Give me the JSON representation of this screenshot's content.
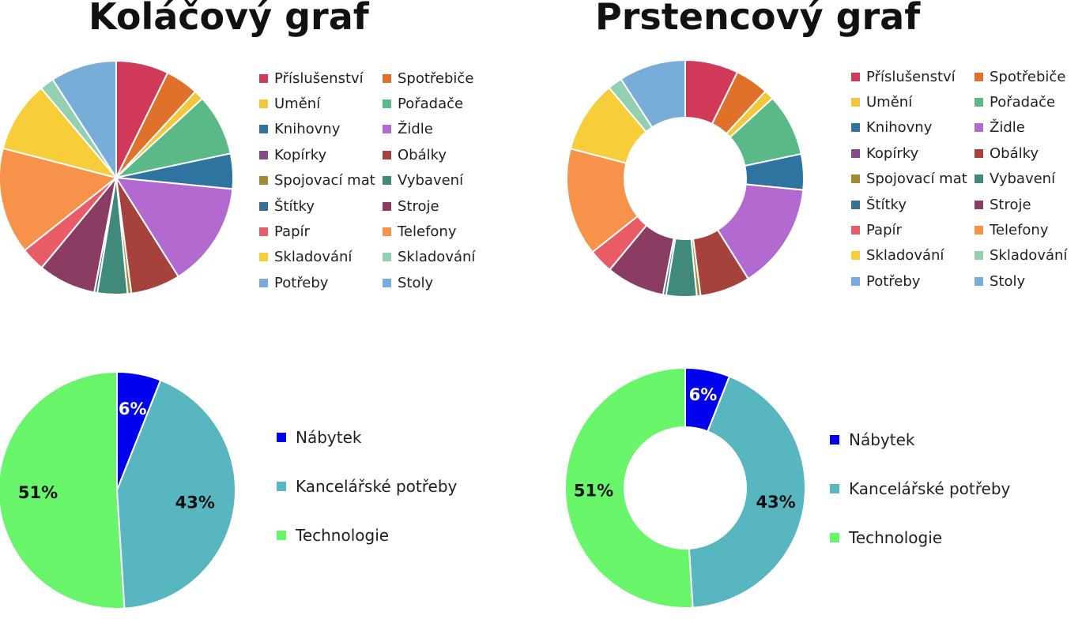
{
  "titles": {
    "pie": "Koláčový graf",
    "donut": "Prstencový graf"
  },
  "chart_data": [
    {
      "type": "pie",
      "title": "",
      "categories": [
        "Příslušenství",
        "Spotřebiče",
        "Umění",
        "Pořadače",
        "Knihovny",
        "Židle",
        "Kopírky",
        "Obálky",
        "Spojovací materiál",
        "Vybavení",
        "Štítky",
        "Stroje",
        "Papír",
        "Telefony",
        "Skladování",
        "Skladování",
        "Potřeby",
        "Stoly"
      ],
      "legend_labels": [
        "Příslušenství",
        "Spotřebiče",
        "Umění",
        "Pořadače",
        "Knihovny",
        "Židle",
        "Kopírky",
        "Obálky",
        "Spojovací mat⁠",
        "Vybavení",
        "Štítky",
        "Stroje",
        "Papír",
        "Telefony",
        "Skladování",
        "Skladování",
        "Potřeby",
        "Stoly"
      ],
      "values": [
        7.0,
        4.4,
        1.3,
        8.2,
        4.7,
        14.0,
        0,
        6.6,
        0.5,
        4.0,
        0.4,
        7.7,
        3.2,
        14.2,
        9.5,
        1.9,
        0,
        8.8
      ],
      "colors": [
        "#d1395b",
        "#e0712a",
        "#f2c73a",
        "#5bb887",
        "#2f74a0",
        "#b26ad0",
        "#844a87",
        "#a5423e",
        "#a28a35",
        "#3f8a7a",
        "#356f95",
        "#8b3c62",
        "#ea5b68",
        "#f6924a",
        "#f7cd3a",
        "#93d0b2",
        "#77abdf",
        "#78acd9"
      ],
      "legend_position": "right"
    },
    {
      "type": "pie",
      "title": "",
      "categories": [
        "Nábytek",
        "Kancelářské potřeby",
        "Technologie"
      ],
      "values": [
        6,
        43,
        51
      ],
      "data_labels": [
        "6%",
        "43%",
        "51%"
      ],
      "colors": [
        "#0000ee",
        "#57b6bf",
        "#68f56a"
      ],
      "legend_position": "right"
    },
    {
      "type": "donut",
      "title": "",
      "categories": [
        "Příslušenství",
        "Spotřebiče",
        "Umění",
        "Pořadače",
        "Knihovny",
        "Židle",
        "Kopírky",
        "Obálky",
        "Spojovací materiál",
        "Vybavení",
        "Štítky",
        "Stroje",
        "Papír",
        "Telefony",
        "Skladování",
        "Skladování",
        "Potřeby",
        "Stoly"
      ],
      "legend_labels": [
        "Příslušenství",
        "Spotřebiče",
        "Umění",
        "Pořadače",
        "Knihovny",
        "Židle",
        "Kopírky",
        "Obálky",
        "Spojovací mat⁠",
        "Vybavení",
        "Štítky",
        "Stroje",
        "Papír",
        "Telefony",
        "Skladování",
        "Skladování",
        "Potřeby",
        "Stoly"
      ],
      "values": [
        7.0,
        4.4,
        1.3,
        8.2,
        4.7,
        14.0,
        0,
        6.6,
        0.5,
        4.0,
        0.4,
        7.7,
        3.2,
        14.2,
        9.5,
        1.9,
        0,
        8.8
      ],
      "colors": [
        "#d1395b",
        "#e0712a",
        "#f2c73a",
        "#5bb887",
        "#2f74a0",
        "#b26ad0",
        "#844a87",
        "#a5423e",
        "#a28a35",
        "#3f8a7a",
        "#356f95",
        "#8b3c62",
        "#ea5b68",
        "#f6924a",
        "#f7cd3a",
        "#93d0b2",
        "#77abdf",
        "#78acd9"
      ],
      "legend_position": "right"
    },
    {
      "type": "donut",
      "title": "",
      "categories": [
        "Nábytek",
        "Kancelářské potřeby",
        "Technologie"
      ],
      "values": [
        6,
        43,
        51
      ],
      "data_labels": [
        "6%",
        "43%",
        "51%"
      ],
      "colors": [
        "#0000ee",
        "#57b6bf",
        "#68f56a"
      ],
      "legend_position": "right"
    }
  ]
}
